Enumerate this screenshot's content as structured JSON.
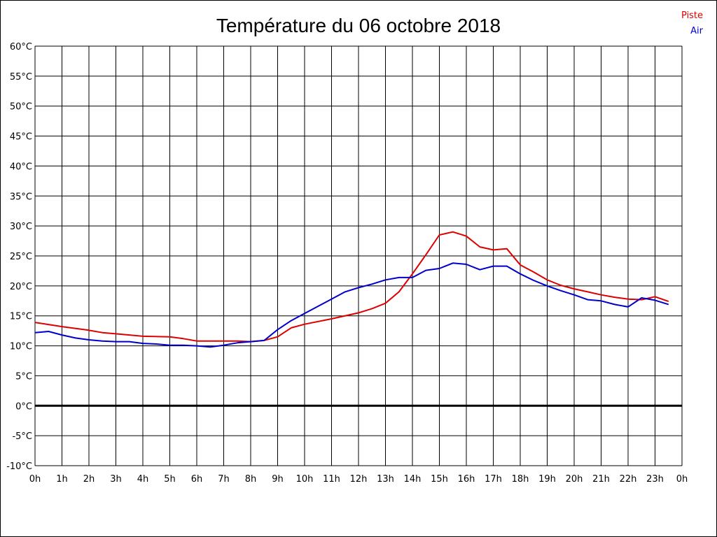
{
  "chart_data": {
    "type": "line",
    "title": "Température du 06 octobre 2018",
    "xlabel": "",
    "ylabel": "",
    "x_ticks": [
      "0h",
      "1h",
      "2h",
      "3h",
      "4h",
      "5h",
      "6h",
      "7h",
      "8h",
      "9h",
      "10h",
      "11h",
      "12h",
      "13h",
      "14h",
      "15h",
      "16h",
      "17h",
      "18h",
      "19h",
      "20h",
      "21h",
      "22h",
      "23h",
      "0h"
    ],
    "y_ticks": [
      "60°C",
      "55°C",
      "50°C",
      "45°C",
      "40°C",
      "35°C",
      "30°C",
      "25°C",
      "20°C",
      "15°C",
      "10°C",
      "5°C",
      "0°C",
      "-5°C",
      "-10°C"
    ],
    "xlim": [
      0,
      24
    ],
    "ylim": [
      -10,
      60
    ],
    "grid": true,
    "legend": "top-right",
    "series": [
      {
        "name": "Piste",
        "color": "#dd0000",
        "x": [
          0,
          1,
          2,
          2.5,
          3,
          4,
          5,
          5.5,
          6,
          7,
          7.5,
          8,
          8.5,
          9,
          9.5,
          10,
          11,
          12,
          12.5,
          13,
          13.5,
          14,
          14.5,
          15,
          15.5,
          16,
          16.5,
          17,
          17.5,
          18,
          18.5,
          19,
          19.5,
          20,
          20.5,
          21,
          21.5,
          22,
          22.5,
          23,
          23.5
        ],
        "y": [
          13.9,
          13.2,
          12.6,
          12.2,
          12.0,
          11.6,
          11.5,
          11.2,
          10.8,
          10.8,
          10.8,
          10.7,
          10.9,
          11.5,
          13.0,
          13.6,
          14.5,
          15.5,
          16.2,
          17.1,
          19.0,
          22.0,
          25.2,
          28.5,
          29.0,
          28.3,
          26.5,
          26.0,
          26.2,
          23.5,
          22.3,
          21.0,
          20.1,
          19.5,
          19.0,
          18.5,
          18.1,
          17.8,
          17.7,
          18.2,
          17.4
        ]
      },
      {
        "name": "Air",
        "color": "#0000cc",
        "x": [
          0,
          0.5,
          1,
          1.5,
          2,
          2.5,
          3,
          3.5,
          4,
          4.5,
          5,
          5.5,
          6,
          6.5,
          7,
          7.5,
          8,
          8.5,
          9,
          9.5,
          10,
          10.5,
          11,
          11.5,
          12,
          12.5,
          13,
          13.5,
          14,
          14.5,
          15,
          15.5,
          16,
          16.5,
          17,
          17.5,
          18,
          18.5,
          19,
          19.5,
          20,
          20.5,
          21,
          21.5,
          22,
          22.5,
          23,
          23.5
        ],
        "y": [
          12.2,
          12.4,
          11.8,
          11.3,
          11.0,
          10.8,
          10.7,
          10.7,
          10.4,
          10.3,
          10.1,
          10.1,
          10.0,
          9.8,
          10.1,
          10.5,
          10.7,
          10.9,
          12.7,
          14.2,
          15.4,
          16.6,
          17.8,
          19.0,
          19.7,
          20.3,
          21.0,
          21.4,
          21.4,
          22.6,
          22.9,
          23.8,
          23.6,
          22.7,
          23.3,
          23.3,
          22.0,
          20.9,
          20.0,
          19.2,
          18.5,
          17.7,
          17.5,
          16.9,
          16.5,
          18.0,
          17.6,
          16.9
        ]
      }
    ]
  }
}
